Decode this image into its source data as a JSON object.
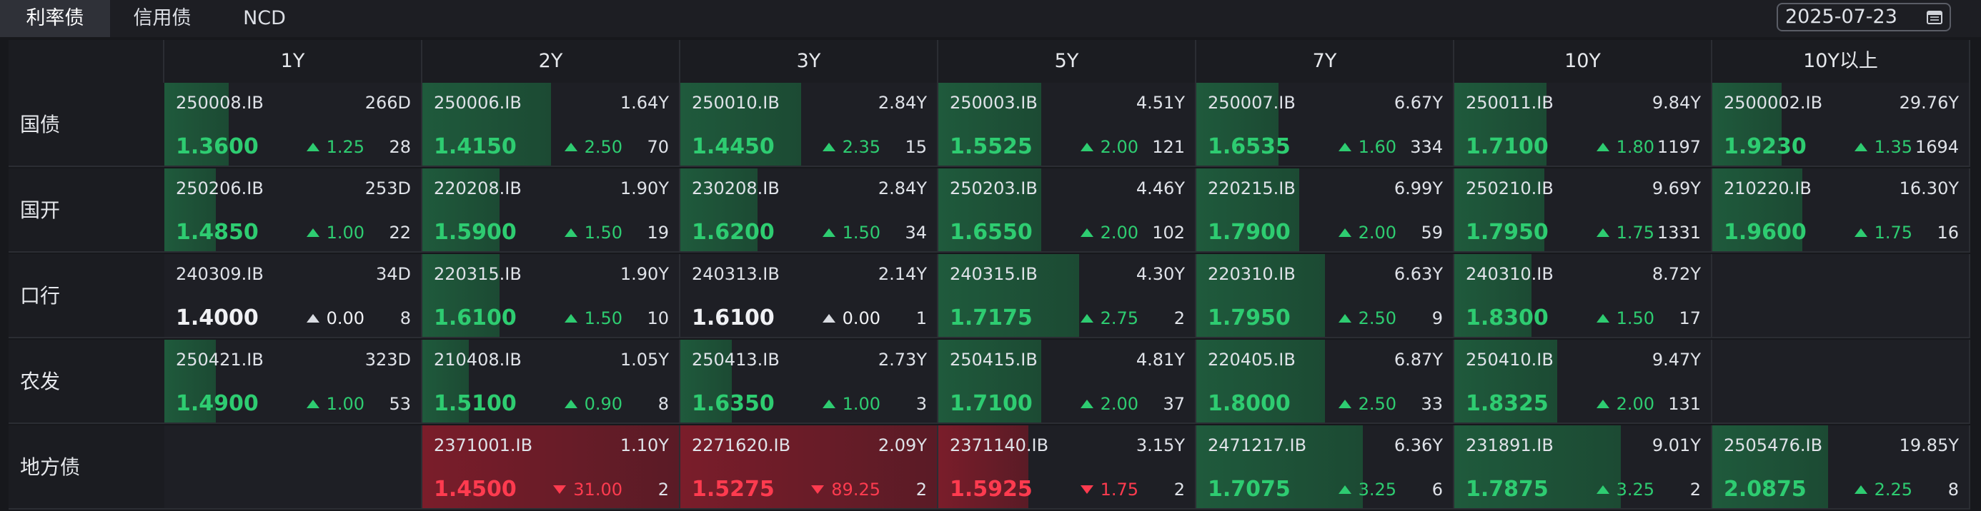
{
  "tabs": [
    "利率债",
    "信用债",
    "NCD"
  ],
  "active_tab": 0,
  "date": "2025-07-23",
  "columns": [
    "1Y",
    "2Y",
    "3Y",
    "5Y",
    "7Y",
    "10Y",
    "10Y以上"
  ],
  "colors": {
    "up": "#2ecc71",
    "down": "#ff3b4f",
    "flat": "#f0f1f4"
  },
  "rows": [
    {
      "label": "国债",
      "cells": [
        {
          "code": "250008.IB",
          "tenor": "266D",
          "yield": "1.3600",
          "change": "1.25",
          "dir": "up",
          "count": "28",
          "level": 0.25
        },
        {
          "code": "250006.IB",
          "tenor": "1.64Y",
          "yield": "1.4150",
          "change": "2.50",
          "dir": "up",
          "count": "70",
          "level": 0.5
        },
        {
          "code": "250010.IB",
          "tenor": "2.84Y",
          "yield": "1.4450",
          "change": "2.35",
          "dir": "up",
          "count": "15",
          "level": 0.47
        },
        {
          "code": "250003.IB",
          "tenor": "4.51Y",
          "yield": "1.5525",
          "change": "2.00",
          "dir": "up",
          "count": "121",
          "level": 0.4
        },
        {
          "code": "250007.IB",
          "tenor": "6.67Y",
          "yield": "1.6535",
          "change": "1.60",
          "dir": "up",
          "count": "334",
          "level": 0.32
        },
        {
          "code": "250011.IB",
          "tenor": "9.84Y",
          "yield": "1.7100",
          "change": "1.80",
          "dir": "up",
          "count": "1197",
          "level": 0.36
        },
        {
          "code": "2500002.IB",
          "tenor": "29.76Y",
          "yield": "1.9230",
          "change": "1.35",
          "dir": "up",
          "count": "1694",
          "level": 0.27
        }
      ]
    },
    {
      "label": "国开",
      "cells": [
        {
          "code": "250206.IB",
          "tenor": "253D",
          "yield": "1.4850",
          "change": "1.00",
          "dir": "up",
          "count": "22",
          "level": 0.2
        },
        {
          "code": "220208.IB",
          "tenor": "1.90Y",
          "yield": "1.5900",
          "change": "1.50",
          "dir": "up",
          "count": "19",
          "level": 0.3
        },
        {
          "code": "230208.IB",
          "tenor": "2.84Y",
          "yield": "1.6200",
          "change": "1.50",
          "dir": "up",
          "count": "34",
          "level": 0.3
        },
        {
          "code": "250203.IB",
          "tenor": "4.46Y",
          "yield": "1.6550",
          "change": "2.00",
          "dir": "up",
          "count": "102",
          "level": 0.4
        },
        {
          "code": "220215.IB",
          "tenor": "6.99Y",
          "yield": "1.7900",
          "change": "2.00",
          "dir": "up",
          "count": "59",
          "level": 0.4
        },
        {
          "code": "250210.IB",
          "tenor": "9.69Y",
          "yield": "1.7950",
          "change": "1.75",
          "dir": "up",
          "count": "1331",
          "level": 0.35
        },
        {
          "code": "210220.IB",
          "tenor": "16.30Y",
          "yield": "1.9600",
          "change": "1.75",
          "dir": "up",
          "count": "16",
          "level": 0.35
        }
      ]
    },
    {
      "label": "口行",
      "cells": [
        {
          "code": "240309.IB",
          "tenor": "34D",
          "yield": "1.4000",
          "change": "0.00",
          "dir": "flat",
          "count": "8",
          "level": 0
        },
        {
          "code": "220315.IB",
          "tenor": "1.90Y",
          "yield": "1.6100",
          "change": "1.50",
          "dir": "up",
          "count": "10",
          "level": 0.3
        },
        {
          "code": "240313.IB",
          "tenor": "2.14Y",
          "yield": "1.6100",
          "change": "0.00",
          "dir": "flat",
          "count": "1",
          "level": 0
        },
        {
          "code": "240315.IB",
          "tenor": "4.30Y",
          "yield": "1.7175",
          "change": "2.75",
          "dir": "up",
          "count": "2",
          "level": 0.55
        },
        {
          "code": "220310.IB",
          "tenor": "6.63Y",
          "yield": "1.7950",
          "change": "2.50",
          "dir": "up",
          "count": "9",
          "level": 0.5
        },
        {
          "code": "240310.IB",
          "tenor": "8.72Y",
          "yield": "1.8300",
          "change": "1.50",
          "dir": "up",
          "count": "17",
          "level": 0.3
        },
        null
      ]
    },
    {
      "label": "农发",
      "cells": [
        {
          "code": "250421.IB",
          "tenor": "323D",
          "yield": "1.4900",
          "change": "1.00",
          "dir": "up",
          "count": "53",
          "level": 0.2
        },
        {
          "code": "210408.IB",
          "tenor": "1.05Y",
          "yield": "1.5100",
          "change": "0.90",
          "dir": "up",
          "count": "8",
          "level": 0.18
        },
        {
          "code": "250413.IB",
          "tenor": "2.73Y",
          "yield": "1.6350",
          "change": "1.00",
          "dir": "up",
          "count": "3",
          "level": 0.2
        },
        {
          "code": "250415.IB",
          "tenor": "4.81Y",
          "yield": "1.7100",
          "change": "2.00",
          "dir": "up",
          "count": "37",
          "level": 0.4
        },
        {
          "code": "220405.IB",
          "tenor": "6.87Y",
          "yield": "1.8000",
          "change": "2.50",
          "dir": "up",
          "count": "33",
          "level": 0.5
        },
        {
          "code": "250410.IB",
          "tenor": "9.47Y",
          "yield": "1.8325",
          "change": "2.00",
          "dir": "up",
          "count": "131",
          "level": 0.4
        },
        null
      ]
    },
    {
      "label": "地方债",
      "cells": [
        null,
        {
          "code": "2371001.IB",
          "tenor": "1.10Y",
          "yield": "1.4500",
          "change": "31.00",
          "dir": "down",
          "count": "2",
          "level": 1.0
        },
        {
          "code": "2271620.IB",
          "tenor": "2.09Y",
          "yield": "1.5275",
          "change": "89.25",
          "dir": "down",
          "count": "2",
          "level": 1.0
        },
        {
          "code": "2371140.IB",
          "tenor": "3.15Y",
          "yield": "1.5925",
          "change": "1.75",
          "dir": "down",
          "count": "2",
          "level": 0.35
        },
        {
          "code": "2471217.IB",
          "tenor": "6.36Y",
          "yield": "1.7075",
          "change": "3.25",
          "dir": "up",
          "count": "6",
          "level": 0.65
        },
        {
          "code": "231891.IB",
          "tenor": "9.01Y",
          "yield": "1.7875",
          "change": "3.25",
          "dir": "up",
          "count": "2",
          "level": 0.65
        },
        {
          "code": "2505476.IB",
          "tenor": "19.85Y",
          "yield": "2.0875",
          "change": "2.25",
          "dir": "up",
          "count": "8",
          "level": 0.45
        }
      ]
    }
  ]
}
